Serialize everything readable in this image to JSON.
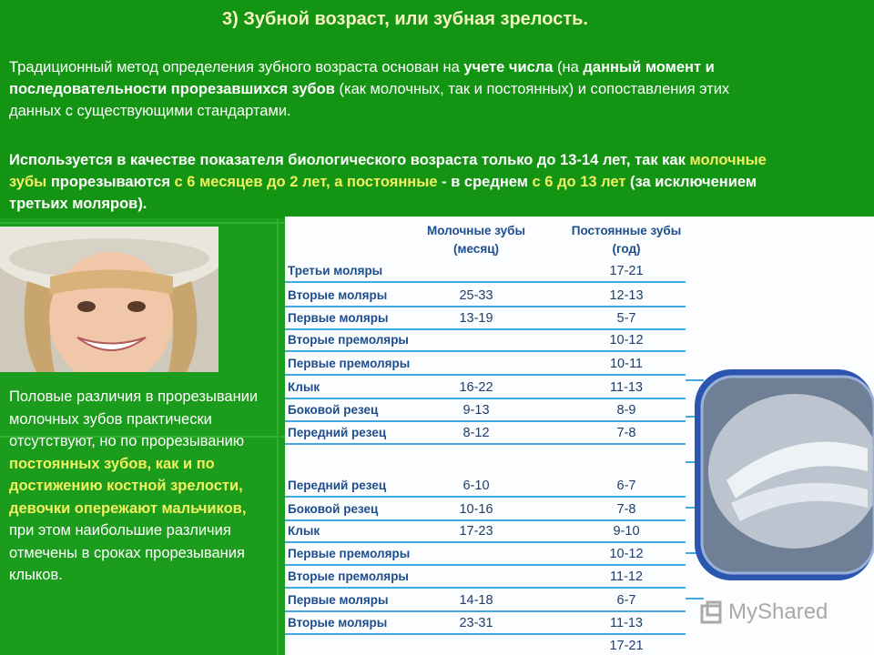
{
  "slide": {
    "title": "3) Зубной возраст, или зубная зрелость.",
    "paragraph1": {
      "t1": "Традиционный метод определения зубного возраста основан на ",
      "t2": "учете числа",
      "t3": " (на ",
      "t4": "данный момент и последовательности прорезавшихся зубов",
      "t5": " (как молочных, так и постоянных) и сопоставления этих данных с существующими стандартами."
    },
    "paragraph2": {
      "t1": "Используется в качестве показателя биологического возраста только до 13-14 лет, так как ",
      "t2": "молочные зубы",
      "t3": " прорезываются ",
      "t4": "с 6 месяцев до 2 лет, а постоянные",
      "t5": " - в среднем ",
      "t6": "с 6 до 13 лет",
      "t7": " (за исключением третьих моляров)."
    },
    "side_text": {
      "t1": "Половые различия в прорезывании молочных зубов практически отсутствуют, но по прорезыванию ",
      "t2": "постоянных зубов, как и по достижению костной зрелости, девочки опережают мальчиков,",
      "t3": " при этом наибольшие различия отмечены в сроках прорезывания клыков."
    },
    "table": {
      "header_col1_line1": "Молочные зубы",
      "header_col1_line2": "(месяц)",
      "header_col2_line1": "Постоянные зубы",
      "header_col2_line2": "(год)",
      "rows": [
        {
          "name": "Третьи моляры",
          "milk": "",
          "perm": "17-21"
        },
        {
          "name": "Вторые моляры",
          "milk": "25-33",
          "perm": "12-13"
        },
        {
          "name": "Первые моляры",
          "milk": "13-19",
          "perm": "5-7"
        },
        {
          "name": "Вторые премоляры",
          "milk": "",
          "perm": "10-12"
        },
        {
          "name": "Первые премоляры",
          "milk": "",
          "perm": "10-11"
        },
        {
          "name": "Клык",
          "milk": "16-22",
          "perm": "11-13"
        },
        {
          "name": "Боковой резец",
          "milk": "9-13",
          "perm": "8-9"
        },
        {
          "name": "Передний резец",
          "milk": "8-12",
          "perm": "7-8"
        },
        {
          "name": "Передний резец",
          "milk": "6-10",
          "perm": "6-7"
        },
        {
          "name": "Боковой резец",
          "milk": "10-16",
          "perm": "7-8"
        },
        {
          "name": "Клык",
          "milk": "17-23",
          "perm": "9-10"
        },
        {
          "name": "Первые премоляры",
          "milk": "",
          "perm": "10-12"
        },
        {
          "name": "Вторые премоляры",
          "milk": "",
          "perm": "11-12"
        },
        {
          "name": "Первые моляры",
          "milk": "14-18",
          "perm": "6-7"
        },
        {
          "name": "Вторые моляры",
          "milk": "23-31",
          "perm": "11-13"
        },
        {
          "name": "",
          "milk": "",
          "perm": "17-21"
        }
      ]
    },
    "watermark": "MyShared",
    "colors": {
      "background": "#1c9c1c",
      "highlight": "#f0f060",
      "table_text": "#1e4d8c",
      "row_line": "#41a8e0"
    }
  }
}
